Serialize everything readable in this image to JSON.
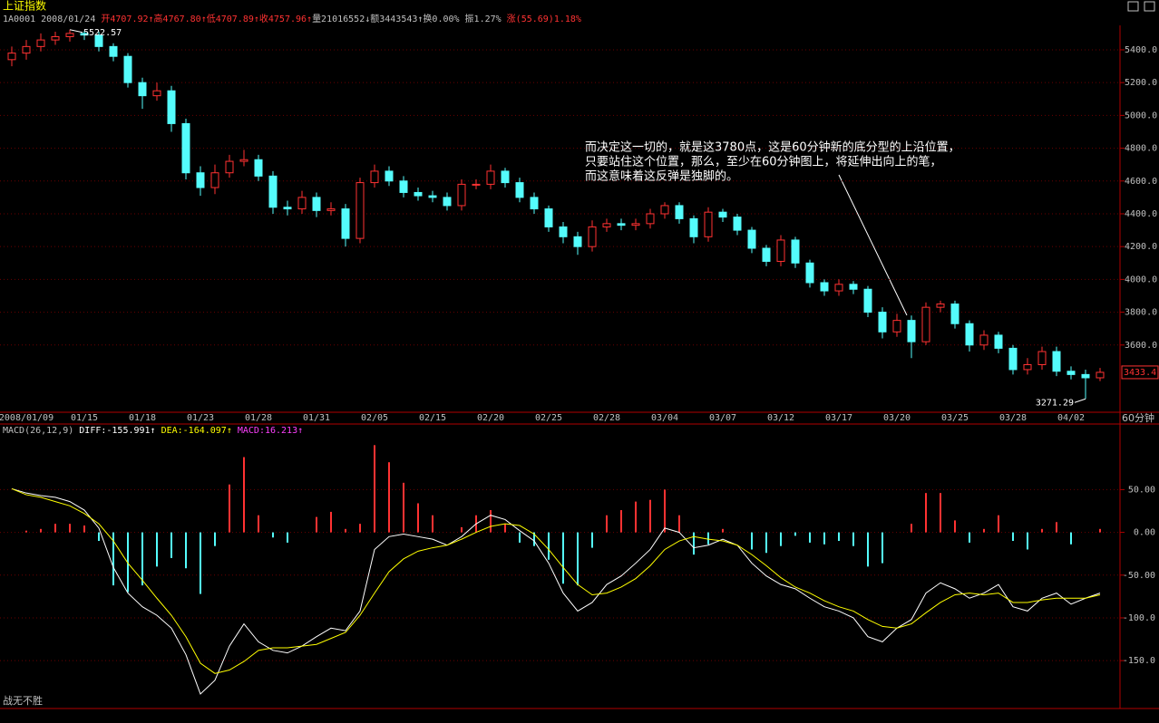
{
  "header": {
    "title": "上证指数",
    "info": [
      {
        "text": "1A0001 2008/01/24 ",
        "color": "#c0c0c0"
      },
      {
        "text": "开4707.92↑",
        "color": "#ff3232"
      },
      {
        "text": "高4767.80↑",
        "color": "#ff3232"
      },
      {
        "text": "低4707.89↑",
        "color": "#ff3232"
      },
      {
        "text": "收4757.96↑",
        "color": "#ff3232"
      },
      {
        "text": "量21016552↓",
        "color": "#c0c0c0"
      },
      {
        "text": "额3443543↑",
        "color": "#c0c0c0"
      },
      {
        "text": "换0.00% ",
        "color": "#c0c0c0"
      },
      {
        "text": "振1.27% ",
        "color": "#c0c0c0"
      },
      {
        "text": "涨(55.69)1.18%",
        "color": "#ff3232"
      }
    ],
    "footer": "战无不胜"
  },
  "chart_data": [
    {
      "type": "candlestick",
      "period": "60分钟",
      "annotation": [
        "而决定这一切的，就是这3780点，这是60分钟新的底分型的上沿位置，",
        "只要站住这个位置，那么，至少在60分钟图上，将延伸出向上的笔，",
        "而这意味着这反弹是独脚的。"
      ],
      "categories": [
        null,
        "2008/01/09",
        null,
        null,
        null,
        "01/15",
        null,
        null,
        null,
        "01/18",
        null,
        null,
        null,
        "01/23",
        null,
        null,
        null,
        "01/28",
        null,
        null,
        null,
        "01/31",
        null,
        null,
        null,
        "02/05",
        null,
        null,
        null,
        "02/15",
        null,
        null,
        null,
        "02/20",
        null,
        null,
        null,
        "02/25",
        null,
        null,
        null,
        "02/28",
        null,
        null,
        null,
        "03/04",
        null,
        null,
        null,
        "03/07",
        null,
        null,
        null,
        "03/12",
        null,
        null,
        null,
        "03/17",
        null,
        null,
        null,
        "03/20",
        null,
        null,
        null,
        "03/25",
        null,
        null,
        null,
        "03/28",
        null,
        null,
        null,
        "04/02",
        null,
        null
      ],
      "open": [
        5340,
        5380,
        5420,
        5460,
        5480,
        5500,
        5490,
        5420,
        5360,
        5200,
        5120,
        5150,
        4950,
        4650,
        4560,
        4650,
        4720,
        4730,
        4630,
        4440,
        4430,
        4500,
        4420,
        4430,
        4250,
        4590,
        4660,
        4600,
        4530,
        4510,
        4500,
        4450,
        4580,
        4580,
        4660,
        4590,
        4500,
        4430,
        4320,
        4260,
        4200,
        4320,
        4340,
        4330,
        4340,
        4400,
        4450,
        4370,
        4260,
        4410,
        4380,
        4300,
        4190,
        4110,
        4240,
        4100,
        3980,
        3930,
        3970,
        3940,
        3800,
        3680,
        3750,
        3620,
        3830,
        3850,
        3730,
        3600,
        3660,
        3580,
        3450,
        3480,
        3560,
        3440,
        3420,
        3400
      ],
      "high": [
        5420,
        5460,
        5500,
        5510,
        5522.57,
        5515,
        5510,
        5440,
        5380,
        5230,
        5200,
        5180,
        4980,
        4690,
        4700,
        4760,
        4790,
        4760,
        4660,
        4480,
        4540,
        4530,
        4470,
        4460,
        4620,
        4700,
        4690,
        4630,
        4560,
        4540,
        4530,
        4610,
        4610,
        4700,
        4680,
        4620,
        4530,
        4450,
        4350,
        4290,
        4360,
        4370,
        4370,
        4370,
        4430,
        4470,
        4470,
        4390,
        4440,
        4430,
        4400,
        4320,
        4210,
        4270,
        4260,
        4120,
        4000,
        4000,
        3990,
        3960,
        3830,
        3790,
        3780,
        3860,
        3870,
        3870,
        3750,
        3690,
        3680,
        3600,
        3520,
        3590,
        3590,
        3470,
        3450,
        3460
      ],
      "low": [
        5300,
        5340,
        5390,
        5430,
        5450,
        5460,
        5390,
        5330,
        5170,
        5040,
        5090,
        4900,
        4610,
        4510,
        4520,
        4620,
        4690,
        4600,
        4400,
        4390,
        4400,
        4380,
        4390,
        4200,
        4220,
        4560,
        4570,
        4500,
        4480,
        4470,
        4420,
        4420,
        4550,
        4550,
        4560,
        4470,
        4400,
        4290,
        4220,
        4150,
        4170,
        4290,
        4300,
        4300,
        4310,
        4370,
        4340,
        4220,
        4230,
        4350,
        4270,
        4160,
        4080,
        4080,
        4070,
        3950,
        3900,
        3900,
        3910,
        3770,
        3640,
        3650,
        3520,
        3600,
        3800,
        3700,
        3560,
        3570,
        3550,
        3420,
        3420,
        3450,
        3410,
        3390,
        3271.29,
        3380
      ],
      "close": [
        5380,
        5420,
        5460,
        5480,
        5500,
        5490,
        5420,
        5360,
        5200,
        5120,
        5150,
        4950,
        4650,
        4560,
        4650,
        4720,
        4730,
        4630,
        4440,
        4430,
        4500,
        4420,
        4430,
        4250,
        4590,
        4660,
        4600,
        4530,
        4510,
        4500,
        4450,
        4580,
        4580,
        4660,
        4590,
        4500,
        4430,
        4320,
        4260,
        4200,
        4320,
        4340,
        4330,
        4340,
        4400,
        4450,
        4370,
        4260,
        4410,
        4380,
        4300,
        4190,
        4110,
        4240,
        4100,
        3980,
        3930,
        3970,
        3940,
        3800,
        3680,
        3750,
        3620,
        3830,
        3850,
        3730,
        3600,
        3660,
        3580,
        3450,
        3480,
        3560,
        3440,
        3420,
        3400,
        3433.4
      ],
      "up_color": "#ff3232",
      "down_color": "#54fcfc",
      "ylim": [
        3190,
        5549
      ],
      "yticks": [
        {
          "value": 3600,
          "label": "3600.0"
        },
        {
          "value": 3800,
          "label": "3800.0"
        },
        {
          "value": 4000,
          "label": "4000.0"
        },
        {
          "value": 4200,
          "label": "4200.0"
        },
        {
          "value": 4400,
          "label": "4400.0"
        },
        {
          "value": 4600,
          "label": "4600.0"
        },
        {
          "value": 4800,
          "label": "4800.0"
        },
        {
          "value": 5000,
          "label": "5000.0"
        },
        {
          "value": 5200,
          "label": "5200.0"
        },
        {
          "value": 5400,
          "label": "5400.0"
        }
      ],
      "grid": true
    },
    {
      "type": "macd",
      "title": "MACD(26,12,9)",
      "series": [
        {
          "name": "DIFF:-155.991↑",
          "color": "#ffffff",
          "values": [
            51,
            46,
            43,
            41,
            36,
            26,
            5,
            -41,
            -71,
            -87,
            -97,
            -112,
            -143,
            -189,
            -173,
            -133,
            -107,
            -128,
            -138,
            -141,
            -133,
            -122,
            -112,
            -115,
            -92,
            -20,
            -5,
            -2,
            -5,
            -8,
            -15,
            -5,
            10,
            20,
            15,
            2,
            -10,
            -36,
            -71,
            -92,
            -82,
            -61,
            -51,
            -36,
            -20,
            5,
            0,
            -18,
            -15,
            -8,
            -15,
            -36,
            -51,
            -61,
            -66,
            -77,
            -87,
            -92,
            -100,
            -122,
            -128,
            -112,
            -102,
            -71,
            -59,
            -66,
            -77,
            -71,
            -61,
            -87,
            -92,
            -77,
            -71,
            -84,
            -77,
            -71
          ]
        },
        {
          "name": "DEA:-164.097↑",
          "color": "#ffff00",
          "values": [
            51,
            44,
            41,
            36,
            31,
            22,
            10,
            -10,
            -36,
            -56,
            -77,
            -97,
            -122,
            -153,
            -165,
            -161,
            -151,
            -138,
            -135,
            -135,
            -133,
            -131,
            -124,
            -117,
            -97,
            -71,
            -46,
            -31,
            -22,
            -18,
            -15,
            -8,
            0,
            7,
            10,
            8,
            -2,
            -20,
            -41,
            -61,
            -73,
            -71,
            -64,
            -54,
            -39,
            -20,
            -10,
            -5,
            -8,
            -10,
            -15,
            -26,
            -39,
            -53,
            -64,
            -71,
            -80,
            -87,
            -92,
            -102,
            -110,
            -112,
            -107,
            -94,
            -82,
            -73,
            -71,
            -73,
            -71,
            -82,
            -82,
            -79,
            -77,
            -77,
            -77,
            -73
          ]
        }
      ],
      "histogram": {
        "name": "MACD:16.213↑",
        "name_color": "#ff40ff",
        "up_color": "#ff3232",
        "down_color": "#54fcfc",
        "values": [
          0,
          2,
          4,
          10,
          10,
          8,
          -10,
          -62,
          -70,
          -62,
          -40,
          -30,
          -42,
          -72,
          -16,
          56,
          88,
          20,
          -6,
          -12,
          0,
          18,
          24,
          4,
          10,
          102,
          82,
          58,
          34,
          20,
          0,
          6,
          20,
          26,
          10,
          -12,
          -16,
          -32,
          -60,
          -62,
          -18,
          20,
          26,
          36,
          38,
          50,
          20,
          -26,
          -14,
          4,
          0,
          -20,
          -24,
          -16,
          -4,
          -12,
          -14,
          -10,
          -16,
          -40,
          -36,
          0,
          10,
          46,
          46,
          14,
          -12,
          4,
          20,
          -10,
          -20,
          4,
          12,
          -14,
          0,
          4
        ]
      },
      "ylim": [
        -206,
        114
      ],
      "yticks": [
        {
          "value": -150,
          "label": "-150.0"
        },
        {
          "value": -100,
          "label": "-100.0"
        },
        {
          "value": -50,
          "label": "-50.00"
        },
        {
          "value": 0,
          "label": "0.00"
        },
        {
          "value": 50,
          "label": "50.00"
        }
      ],
      "grid": true
    }
  ]
}
